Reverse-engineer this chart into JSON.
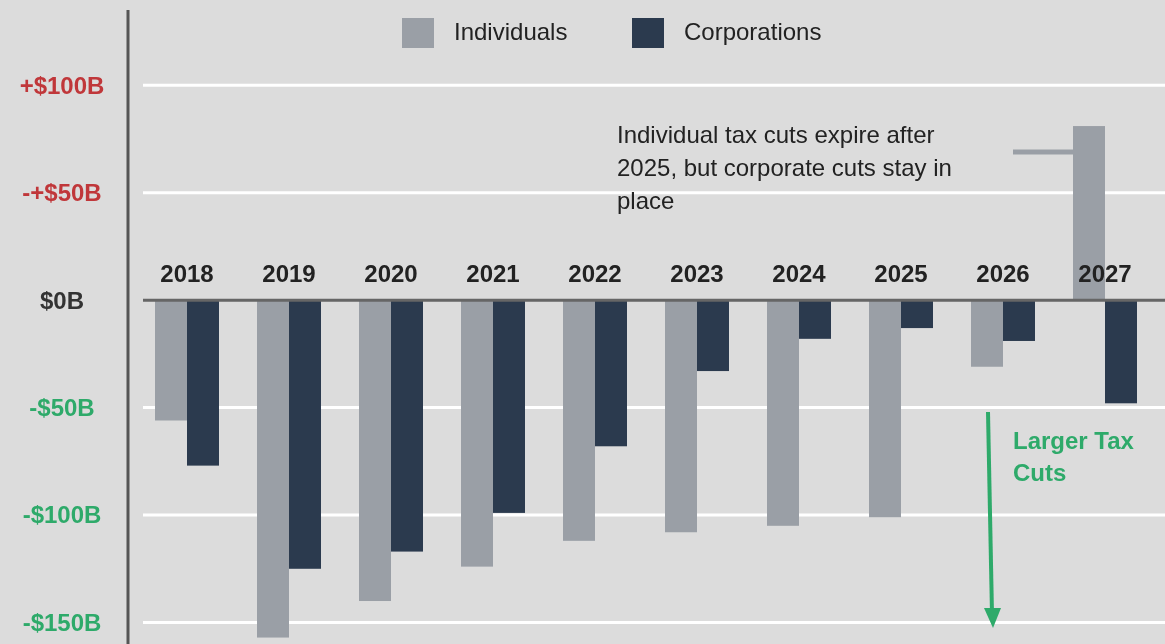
{
  "chart_data": {
    "type": "bar",
    "categories": [
      "2018",
      "2019",
      "2020",
      "2021",
      "2022",
      "2023",
      "2024",
      "2025",
      "2026",
      "2027"
    ],
    "series": [
      {
        "name": "Individuals",
        "color": "#9a9fa6",
        "values": [
          -56,
          -157,
          -140,
          -124,
          -112,
          -108,
          -105,
          -101,
          -31,
          81
        ]
      },
      {
        "name": "Corporations",
        "color": "#2b3a4e",
        "values": [
          -77,
          -125,
          -117,
          -99,
          -68,
          -33,
          -18,
          -13,
          -19,
          -48
        ]
      }
    ],
    "ylim": [
      -160,
      135
    ],
    "yticks": [
      {
        "value": 100,
        "label": "+$100B"
      },
      {
        "value": 50,
        "label": "-+$50B"
      },
      {
        "value": 0,
        "label": "$0B"
      },
      {
        "value": -50,
        "label": "-$50B"
      },
      {
        "value": -100,
        "label": "-$100B"
      },
      {
        "value": -150,
        "label": "-$150B"
      }
    ],
    "grid": "y",
    "legend": "top",
    "annotations": [
      "Individual tax cuts expire after 2025, but corporate cuts stay in place",
      "Larger Tax Cuts"
    ]
  }
}
